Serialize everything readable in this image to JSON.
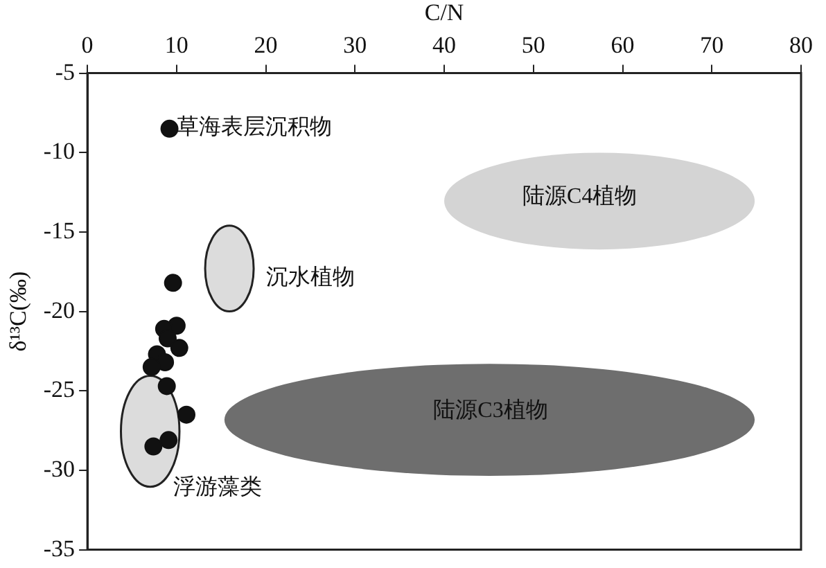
{
  "chart_data": {
    "type": "scatter",
    "xlabel": "C/N",
    "ylabel": "δ¹³C(‰)",
    "x": [
      9.2,
      9.6,
      10,
      8.6,
      9,
      10.3,
      7.8,
      8.7,
      7.2,
      8.9,
      11.1,
      9.1,
      7.4
    ],
    "values": [
      -8.5,
      -18.2,
      -20.9,
      -21.1,
      -21.7,
      -22.3,
      -22.7,
      -23.2,
      -23.5,
      -24.7,
      -26.5,
      -28.1,
      -28.5
    ],
    "color": "#111111",
    "marker": "circle",
    "xlim": [
      0,
      80
    ],
    "xticks": [
      0,
      10,
      20,
      30,
      40,
      50,
      60,
      70,
      80
    ],
    "ylim": [
      -35,
      -5
    ],
    "yticks": [
      -35,
      -30,
      -25,
      -20,
      -15,
      -10,
      -5
    ],
    "grid": false,
    "legend": false,
    "annotations": [
      "草海表层沉积物",
      "陆源C4植物",
      "沉水植物",
      "陆源C3植物",
      "浮游藻类"
    ]
  }
}
